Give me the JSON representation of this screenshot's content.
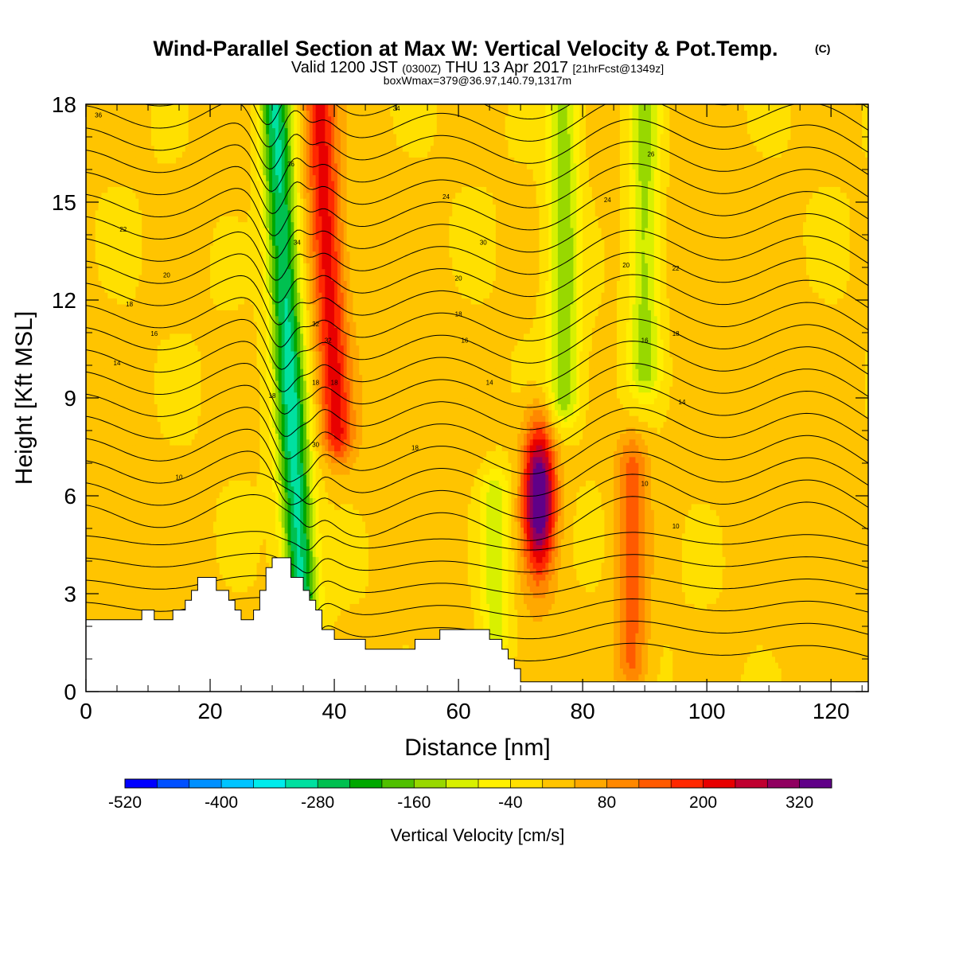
{
  "chart_data": {
    "type": "heatmap",
    "title": "Wind-Parallel Section at Max W: Vertical Velocity & Pot.Temp.",
    "title_mark": "(C)",
    "subtitle_parts": [
      "Valid 1200 JST",
      "(0300Z)",
      "THU 13 Apr 2017",
      "[21hrFcst@1349z]"
    ],
    "subtitle2": "boxWmax=379@36.97,140.79,1317m",
    "xlabel": "Distance [nm]",
    "ylabel": "Height [Kft MSL]",
    "xlim": [
      0,
      126
    ],
    "ylim": [
      0,
      18
    ],
    "x_ticks": [
      "0",
      "20",
      "40",
      "60",
      "80",
      "100",
      "120"
    ],
    "y_ticks": [
      "0",
      "3",
      "6",
      "9",
      "12",
      "15",
      "18"
    ],
    "colorbar": {
      "label": "Vertical Velocity [cm/s]",
      "tick_labels": [
        "-520",
        "-400",
        "-280",
        "-160",
        "-40",
        "80",
        "200",
        "320"
      ],
      "levels": [
        -520,
        -480,
        -440,
        -400,
        -360,
        -320,
        -280,
        -240,
        -200,
        -160,
        -120,
        -80,
        -40,
        0,
        40,
        80,
        120,
        160,
        200,
        240,
        280,
        320,
        360
      ],
      "colors": [
        "#0000ff",
        "#0050ff",
        "#0090ff",
        "#00c4ff",
        "#00ecec",
        "#00e0a0",
        "#00c050",
        "#00a800",
        "#50c000",
        "#98d800",
        "#d8f000",
        "#fff000",
        "#ffe000",
        "#ffc400",
        "#ffa800",
        "#ff8800",
        "#ff5a00",
        "#ff2800",
        "#e80000",
        "#c00030",
        "#900060",
        "#600088"
      ]
    },
    "w_features": [
      {
        "type": "updraft",
        "x_center": 73,
        "y_bottom": 2,
        "y_top": 8.5,
        "peak_cm_s": 379
      },
      {
        "type": "downdraft",
        "x_center": 33,
        "y_bottom": 3,
        "y_top": 18,
        "peak_cm_s": -300
      },
      {
        "type": "updraft",
        "x_center": 39,
        "y_bottom": 8,
        "y_top": 18,
        "peak_cm_s": 200
      },
      {
        "type": "downdraft",
        "x_center": 77,
        "y_bottom": 9,
        "y_top": 18,
        "peak_cm_s": -150
      },
      {
        "type": "downdraft",
        "x_center": 90,
        "y_bottom": 10,
        "y_top": 18,
        "peak_cm_s": -150
      },
      {
        "type": "updraft",
        "x_center": 88,
        "y_bottom": 1,
        "y_top": 7,
        "peak_cm_s": 130
      },
      {
        "type": "downdraft",
        "x_center": 66,
        "y_bottom": 2,
        "y_top": 6,
        "peak_cm_s": -120
      }
    ],
    "contour_labels": [
      {
        "text": "36",
        "x": 2,
        "y": 17.6
      },
      {
        "text": "34",
        "x": 50,
        "y": 17.8
      },
      {
        "text": "36",
        "x": 33,
        "y": 16.1
      },
      {
        "text": "26",
        "x": 91,
        "y": 16.4
      },
      {
        "text": "24",
        "x": 58,
        "y": 15.1
      },
      {
        "text": "24",
        "x": 84,
        "y": 15.0
      },
      {
        "text": "22",
        "x": 6,
        "y": 14.1
      },
      {
        "text": "34",
        "x": 34,
        "y": 13.7
      },
      {
        "text": "30",
        "x": 64,
        "y": 13.7
      },
      {
        "text": "20",
        "x": 13,
        "y": 12.7
      },
      {
        "text": "20",
        "x": 60,
        "y": 12.6
      },
      {
        "text": "20",
        "x": 87,
        "y": 13.0
      },
      {
        "text": "22",
        "x": 95,
        "y": 12.9
      },
      {
        "text": "18",
        "x": 7,
        "y": 11.8
      },
      {
        "text": "18",
        "x": 60,
        "y": 11.5
      },
      {
        "text": "32",
        "x": 37,
        "y": 11.2
      },
      {
        "text": "16",
        "x": 11,
        "y": 10.9
      },
      {
        "text": "16",
        "x": 61,
        "y": 10.7
      },
      {
        "text": "16",
        "x": 90,
        "y": 10.7
      },
      {
        "text": "18",
        "x": 95,
        "y": 10.9
      },
      {
        "text": "32",
        "x": 39,
        "y": 10.7
      },
      {
        "text": "14",
        "x": 5,
        "y": 10.0
      },
      {
        "text": "14",
        "x": 65,
        "y": 9.4
      },
      {
        "text": "14",
        "x": 96,
        "y": 8.8
      },
      {
        "text": "18",
        "x": 37,
        "y": 9.4
      },
      {
        "text": "18",
        "x": 40,
        "y": 9.4
      },
      {
        "text": "18",
        "x": 30,
        "y": 9.0
      },
      {
        "text": "30",
        "x": 37,
        "y": 7.5
      },
      {
        "text": "18",
        "x": 53,
        "y": 7.4
      },
      {
        "text": "10",
        "x": 15,
        "y": 6.5
      },
      {
        "text": "10",
        "x": 90,
        "y": 6.3
      },
      {
        "text": "10",
        "x": 95,
        "y": 5.0
      }
    ],
    "grid": false,
    "legend": "colorbar-bottom"
  }
}
